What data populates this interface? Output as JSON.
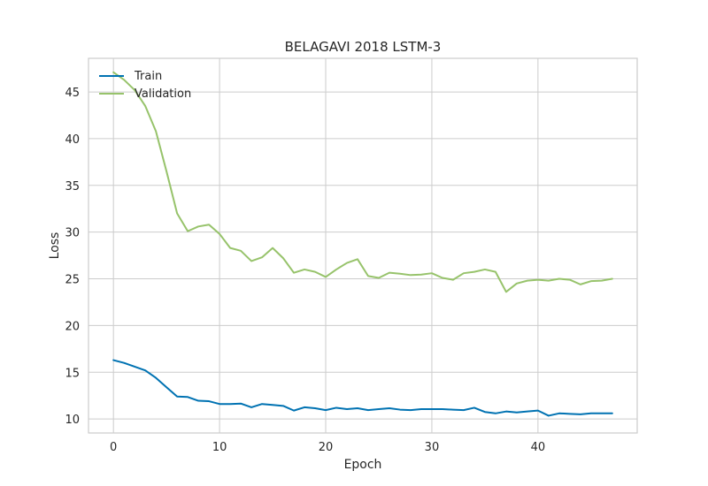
{
  "chart_data": {
    "type": "line",
    "title": "BELAGAVI 2018 LSTM-3",
    "xlabel": "Epoch",
    "ylabel": "Loss",
    "xlim": [
      -2.35,
      49.35
    ],
    "ylim": [
      8.5,
      48.6
    ],
    "xticks": [
      0,
      10,
      20,
      30,
      40
    ],
    "yticks": [
      10,
      15,
      20,
      25,
      30,
      35,
      40,
      45
    ],
    "grid": true,
    "legend_position": "top-left",
    "x": [
      0,
      1,
      2,
      3,
      4,
      5,
      6,
      7,
      8,
      9,
      10,
      11,
      12,
      13,
      14,
      15,
      16,
      17,
      18,
      19,
      20,
      21,
      22,
      23,
      24,
      25,
      26,
      27,
      28,
      29,
      30,
      31,
      32,
      33,
      34,
      35,
      36,
      37,
      38,
      39,
      40,
      41,
      42,
      43,
      44,
      45,
      46,
      47
    ],
    "series": [
      {
        "name": "Train",
        "color": "#0072b2",
        "values": [
          16.3,
          16.0,
          15.6,
          15.2,
          14.4,
          13.4,
          12.4,
          12.35,
          11.95,
          11.9,
          11.6,
          11.6,
          11.65,
          11.25,
          11.6,
          11.5,
          11.4,
          10.9,
          11.25,
          11.15,
          10.95,
          11.2,
          11.05,
          11.15,
          10.95,
          11.05,
          11.15,
          11.0,
          10.95,
          11.05,
          11.05,
          11.05,
          11.0,
          10.95,
          11.2,
          10.75,
          10.6,
          10.8,
          10.7,
          10.8,
          10.9,
          10.35,
          10.6,
          10.55,
          10.5,
          10.6,
          10.6,
          10.6
        ]
      },
      {
        "name": "Validation",
        "color": "#97c36b",
        "values": [
          47.1,
          46.3,
          45.2,
          43.5,
          40.8,
          36.5,
          32.0,
          30.1,
          30.6,
          30.8,
          29.8,
          28.3,
          28.0,
          26.9,
          27.3,
          28.3,
          27.2,
          25.65,
          26.0,
          25.75,
          25.2,
          26.0,
          26.7,
          27.1,
          25.3,
          25.1,
          25.65,
          25.55,
          25.4,
          25.45,
          25.6,
          25.1,
          24.9,
          25.6,
          25.75,
          26.0,
          25.75,
          23.6,
          24.5,
          24.8,
          24.9,
          24.8,
          25.0,
          24.9,
          24.4,
          24.75,
          24.8,
          25.0
        ]
      }
    ]
  }
}
